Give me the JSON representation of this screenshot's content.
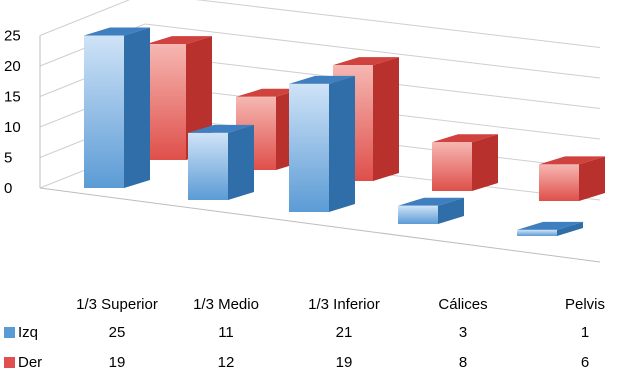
{
  "chart_data": {
    "type": "bar",
    "categories": [
      "1/3 Superior",
      "1/3 Medio",
      "1/3 Inferior",
      "Cálices",
      "Pelvis"
    ],
    "series": [
      {
        "name": "Izq",
        "values": [
          25,
          11,
          21,
          3,
          1
        ],
        "color": "#5b9bd5"
      },
      {
        "name": "Der",
        "values": [
          19,
          12,
          19,
          8,
          6
        ],
        "color": "#e06060"
      }
    ],
    "yticks": [
      "0",
      "5",
      "10",
      "15",
      "20",
      "25"
    ],
    "ylim": [
      0,
      25
    ],
    "grid": true,
    "legend": "bottom-left data table",
    "title": "",
    "xlabel": "",
    "ylabel": ""
  }
}
